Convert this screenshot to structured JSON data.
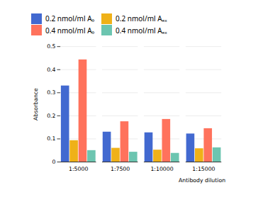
{
  "chart_data": {
    "type": "bar",
    "categories": [
      "1:5000",
      "1:7500",
      "1:10000",
      "1:15000"
    ],
    "series": [
      {
        "name": "0.2 nmol/ml A₀",
        "values": [
          0.33,
          0.13,
          0.127,
          0.122
        ]
      },
      {
        "name": "0.2 nmol/ml Aₑₓ",
        "values": [
          0.093,
          0.06,
          0.052,
          0.058
        ]
      },
      {
        "name": "0.4 nmol/ml A₀",
        "values": [
          0.443,
          0.175,
          0.185,
          0.145
        ]
      },
      {
        "name": "0.4 nmol/ml Aₑₓ",
        "values": [
          0.05,
          0.043,
          0.038,
          0.062
        ]
      }
    ],
    "xlabel": "Antibody dilution",
    "ylabel": "Absorbance",
    "ylim": [
      0,
      0.5
    ],
    "yticks": [
      0,
      0.1,
      0.2,
      0.3,
      0.4,
      0.5
    ],
    "grid": true
  }
}
